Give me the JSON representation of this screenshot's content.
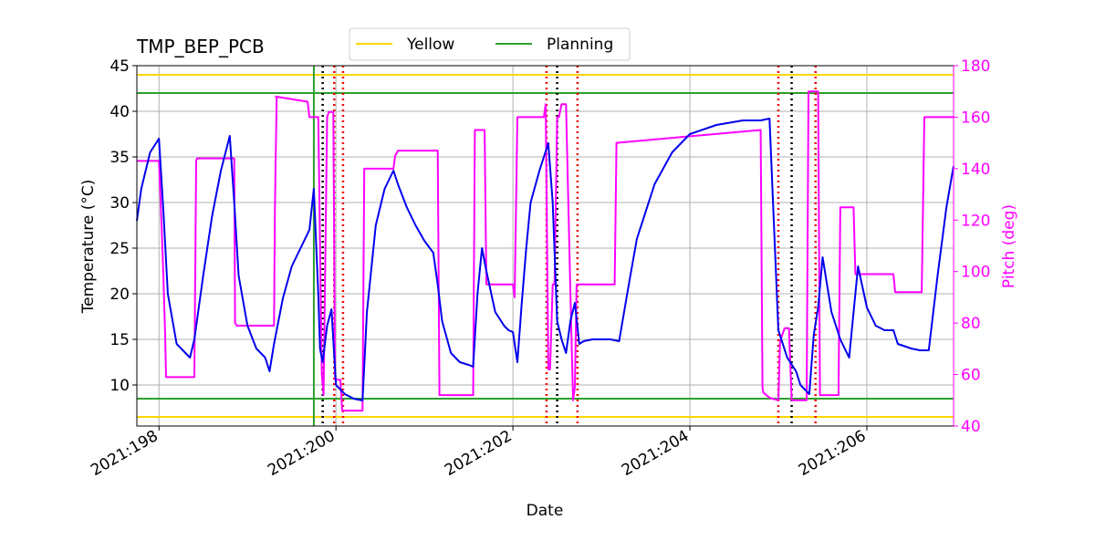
{
  "chart_data": {
    "type": "line",
    "title": "TMP_BEP_PCB",
    "xlabel": "Date",
    "ylabel": "Temperature ($^\\circ$C)",
    "ylabel_display": "Temperature (°C)",
    "y2label": "Pitch (deg)",
    "xlim": [
      197.75,
      206.98
    ],
    "ylim": [
      5.5,
      45
    ],
    "y2lim": [
      40,
      180
    ],
    "x_ticks": [
      {
        "value": 198,
        "label": "2021:198"
      },
      {
        "value": 200,
        "label": "2021:200"
      },
      {
        "value": 202,
        "label": "2021:202"
      },
      {
        "value": 204,
        "label": "2021:204"
      },
      {
        "value": 206,
        "label": "2021:206"
      }
    ],
    "y_ticks": [
      10,
      15,
      20,
      25,
      30,
      35,
      40,
      45
    ],
    "y2_ticks": [
      40,
      60,
      80,
      100,
      120,
      140,
      160,
      180
    ],
    "grid": true,
    "legend": {
      "placement": "top-center (above plot)",
      "entries": [
        {
          "label": "Yellow",
          "color": "#FFD700"
        },
        {
          "label": "Planning",
          "color": "#2CA02C"
        }
      ]
    },
    "limits": [
      {
        "name": "Yellow",
        "values": [
          44,
          6.5
        ],
        "color": "#FFD700"
      },
      {
        "name": "Planning",
        "values": [
          42,
          8.5
        ],
        "color": "#2CA02C"
      }
    ],
    "vertical_lines": {
      "green_solid": [
        199.75
      ],
      "black_dotted": [
        199.85,
        202.5,
        205.15
      ],
      "red_dotted": [
        199.98,
        200.08,
        202.38,
        202.73,
        205.0,
        205.42
      ]
    },
    "colors": {
      "temperature": "#0000EE",
      "pitch": "#FF00FF",
      "grid": "#B0B0B0",
      "black_marker": "#000000",
      "red_marker": "#EE0000"
    },
    "series": [
      {
        "axis": "left",
        "x": [
          197.75,
          197.8,
          197.9,
          198.0,
          198.05,
          198.1,
          198.2,
          198.3,
          198.35,
          198.4,
          198.5,
          198.6,
          198.7,
          198.8,
          198.85,
          198.9,
          199.0,
          199.1,
          199.2,
          199.25,
          199.3,
          199.4,
          199.5,
          199.6,
          199.7,
          199.75,
          199.8,
          199.82,
          199.85,
          199.9,
          199.95,
          200.0,
          200.1,
          200.2,
          200.3,
          200.35,
          200.45,
          200.55,
          200.65,
          200.7,
          200.8,
          200.9,
          201.0,
          201.1,
          201.15,
          201.2,
          201.3,
          201.4,
          201.5,
          201.55,
          201.6,
          201.65,
          201.7,
          201.8,
          201.9,
          201.95,
          202.0,
          202.05,
          202.1,
          202.15,
          202.2,
          202.3,
          202.35,
          202.4,
          202.45,
          202.5,
          202.55,
          202.6,
          202.65,
          202.7,
          202.75,
          202.8,
          202.9,
          203.0,
          203.1,
          203.2,
          203.3,
          203.4,
          203.6,
          203.8,
          204.0,
          204.3,
          204.6,
          204.8,
          204.9,
          205.0,
          205.1,
          205.2,
          205.25,
          205.3,
          205.35,
          205.4,
          205.45,
          205.5,
          205.6,
          205.7,
          205.75,
          205.8,
          205.9,
          206.0,
          206.1,
          206.2,
          206.3,
          206.35,
          206.5,
          206.6,
          206.7,
          206.8,
          206.9,
          206.98
        ],
        "values": [
          28.0,
          31.5,
          35.5,
          37.0,
          29.0,
          20.0,
          14.5,
          13.5,
          13.0,
          15.0,
          22.0,
          28.5,
          33.5,
          37.3,
          30.0,
          22.0,
          16.5,
          14.0,
          13.0,
          11.5,
          14.5,
          19.5,
          23.0,
          25.0,
          27.0,
          31.5,
          20.0,
          14.0,
          12.5,
          16.5,
          18.3,
          10.0,
          9.0,
          8.5,
          8.3,
          18.0,
          27.5,
          31.5,
          33.5,
          32.0,
          29.5,
          27.5,
          25.8,
          24.5,
          21.0,
          17.0,
          13.5,
          12.5,
          12.2,
          12.0,
          20.0,
          25.0,
          22.5,
          18.0,
          16.5,
          16.0,
          15.8,
          12.5,
          19.0,
          25.0,
          30.0,
          33.5,
          35.0,
          36.5,
          30.0,
          17.0,
          15.0,
          13.5,
          17.0,
          19.0,
          14.5,
          14.8,
          15.0,
          15.0,
          15.0,
          14.8,
          20.5,
          26.0,
          32.0,
          35.5,
          37.5,
          38.5,
          39.0,
          39.0,
          39.2,
          16.0,
          13.0,
          11.5,
          10.0,
          9.5,
          9.0,
          15.5,
          18.5,
          24.0,
          18.0,
          15.0,
          14.0,
          13.0,
          23.0,
          18.5,
          16.5,
          16.0,
          16.0,
          14.5,
          14.0,
          13.8,
          13.8,
          22.0,
          29.5,
          34.0
        ]
      },
      {
        "axis": "right",
        "x": [
          197.75,
          198.0,
          198.02,
          198.05,
          198.07,
          198.08,
          198.4,
          198.42,
          198.43,
          198.85,
          198.86,
          198.88,
          199.3,
          199.31,
          199.33,
          199.32,
          199.68,
          199.7,
          199.72,
          199.75,
          199.8,
          199.84,
          199.86,
          199.9,
          199.92,
          199.95,
          199.97,
          199.99,
          200.05,
          200.07,
          200.1,
          200.3,
          200.32,
          200.65,
          200.67,
          200.7,
          201.15,
          201.17,
          201.55,
          201.57,
          201.68,
          201.7,
          202.0,
          202.02,
          202.05,
          202.07,
          202.35,
          202.37,
          202.4,
          202.42,
          202.45,
          202.47,
          202.5,
          202.52,
          202.55,
          202.58,
          202.6,
          202.65,
          202.68,
          202.7,
          202.72,
          202.75,
          202.78,
          202.8,
          203.15,
          203.17,
          204.8,
          204.82,
          204.83,
          204.9,
          205.0,
          205.02,
          205.07,
          205.12,
          205.15,
          205.2,
          205.25,
          205.32,
          205.34,
          205.38,
          205.45,
          205.47,
          205.68,
          205.7,
          205.7,
          205.85,
          205.87,
          206.3,
          206.32,
          206.62,
          206.65,
          206.98
        ],
        "values": [
          143,
          143,
          126,
          98,
          75,
          59,
          59,
          143,
          144,
          144,
          80,
          79,
          79,
          125,
          168,
          168,
          166,
          160,
          160,
          160,
          160,
          60,
          52,
          160,
          162,
          162,
          162,
          58,
          58,
          46,
          46,
          46,
          140,
          140,
          145,
          147,
          147,
          52,
          52,
          155,
          155,
          95,
          95,
          90,
          160,
          160,
          160,
          165,
          62,
          62,
          95,
          95,
          160,
          160,
          165,
          165,
          165,
          92,
          50,
          55,
          95,
          95,
          95,
          95,
          95,
          150,
          155,
          55,
          53,
          51,
          50,
          73,
          78,
          78,
          50,
          50,
          50,
          50,
          170,
          170,
          170,
          52,
          52,
          125,
          125,
          125,
          99,
          99,
          92,
          92,
          160,
          160
        ]
      }
    ]
  }
}
